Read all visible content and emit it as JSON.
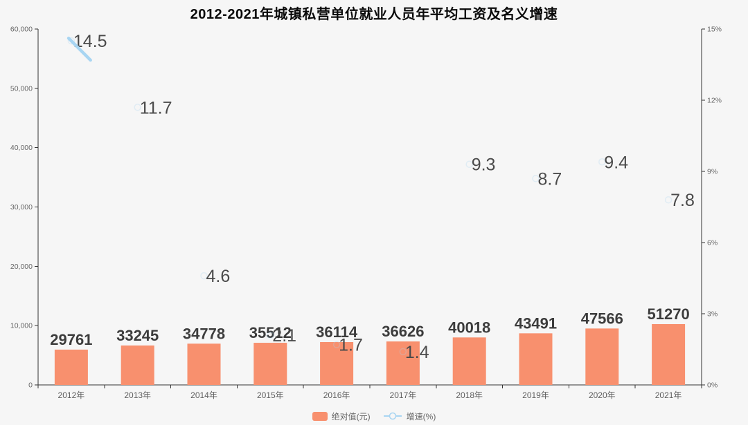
{
  "chart_data": {
    "type": "bar",
    "title": "2012-2021年城镇私营单位就业人员年平均工资及名义增速",
    "categories": [
      "2012年",
      "2013年",
      "2014年",
      "2015年",
      "2016年",
      "2017年",
      "2018年",
      "2019年",
      "2020年",
      "2021年"
    ],
    "series": [
      {
        "name": "绝对值(元)",
        "type": "bar",
        "color": "#f8906e",
        "values": [
          29761,
          33245,
          34778,
          35512,
          36114,
          36626,
          40018,
          43491,
          47566,
          51270
        ]
      },
      {
        "name": "增速(%)",
        "type": "line",
        "color": "#a8d5f2",
        "values": [
          14.5,
          11.7,
          4.6,
          2.1,
          1.7,
          1.4,
          9.3,
          8.7,
          9.4,
          7.8
        ]
      }
    ],
    "y_left_axis": {
      "min": 0,
      "max": 60000,
      "tick_labels": [
        "0",
        "10,000",
        "20,000",
        "30,000",
        "40,000",
        "50,000",
        "60,000"
      ]
    },
    "y_right_axis": {
      "min": 0,
      "max": 15,
      "tick_labels": [
        "0%",
        "3%",
        "6%",
        "9%",
        "12%",
        "15%"
      ]
    },
    "legend_position": "bottom",
    "grid": false,
    "render_state": {
      "bar_height_fraction_shown": 0.2,
      "line_segment_shown": "partial segment from 2012 point toward 2013",
      "background": "#f6f6f6",
      "axis_color": "#333333",
      "axis_label_color": "#666666",
      "category_label_color": "#5f5f5f",
      "value_label_color": "#3c3c3c",
      "growth_label_color": "#4a4a4a"
    }
  }
}
